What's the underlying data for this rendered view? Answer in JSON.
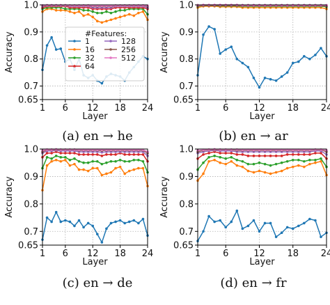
{
  "colors": {
    "1": "#1f77b4",
    "16": "#ff7f0e",
    "32": "#2ca02c",
    "64": "#d62728",
    "128": "#9467bd",
    "256": "#8c564b",
    "512": "#e377c2"
  },
  "legend": {
    "title": "#Features:",
    "placement": "inside-upper-center",
    "entries": [
      "1",
      "16",
      "32",
      "64",
      "128",
      "256",
      "512"
    ]
  },
  "captions": [
    "(a) en → he",
    "(b) en → ar",
    "(c) en → de",
    "(d) en → fr"
  ],
  "chart_data": [
    {
      "type": "line",
      "caption": "(a) en → he",
      "xlabel": "Layer",
      "ylabel": "Accuracy",
      "xlim": [
        1,
        24
      ],
      "ylim": [
        0.65,
        1.0
      ],
      "xticks": [
        1,
        6,
        12,
        18,
        24
      ],
      "yticks": [
        0.65,
        0.7,
        0.8,
        0.9,
        1.0
      ],
      "ytick_labels": [
        "0.65",
        "0.7",
        "0.8",
        "0.9",
        "1.0"
      ],
      "grid": true,
      "x": [
        1,
        2,
        3,
        4,
        5,
        6,
        7,
        8,
        9,
        10,
        11,
        12,
        13,
        14,
        15,
        16,
        17,
        18,
        19,
        20,
        21,
        22,
        23,
        24
      ],
      "series": [
        {
          "name": "1",
          "values": [
            0.76,
            0.85,
            0.88,
            0.835,
            0.838,
            0.79,
            0.8,
            0.76,
            0.8,
            0.74,
            0.73,
            0.74,
            0.72,
            0.71,
            0.735,
            0.745,
            0.74,
            0.735,
            0.72,
            0.75,
            0.77,
            0.79,
            0.81,
            0.8
          ]
        },
        {
          "name": "16",
          "values": [
            0.975,
            0.985,
            0.985,
            0.98,
            0.98,
            0.98,
            0.975,
            0.97,
            0.975,
            0.96,
            0.965,
            0.955,
            0.94,
            0.935,
            0.94,
            0.945,
            0.95,
            0.955,
            0.96,
            0.965,
            0.96,
            0.97,
            0.975,
            0.945
          ]
        },
        {
          "name": "32",
          "values": [
            0.985,
            0.99,
            0.99,
            0.99,
            0.99,
            0.985,
            0.985,
            0.985,
            0.985,
            0.98,
            0.98,
            0.975,
            0.97,
            0.97,
            0.975,
            0.97,
            0.975,
            0.98,
            0.98,
            0.985,
            0.985,
            0.985,
            0.985,
            0.965
          ]
        },
        {
          "name": "64",
          "values": [
            0.99,
            0.995,
            0.995,
            0.995,
            0.995,
            0.995,
            0.99,
            0.99,
            0.99,
            0.99,
            0.99,
            0.985,
            0.985,
            0.985,
            0.985,
            0.985,
            0.99,
            0.99,
            0.99,
            0.99,
            0.99,
            0.99,
            0.99,
            0.985
          ]
        },
        {
          "name": "128",
          "values": [
            0.995,
            0.997,
            0.997,
            0.997,
            0.997,
            0.997,
            0.995,
            0.995,
            0.995,
            0.995,
            0.995,
            0.99,
            0.99,
            0.99,
            0.99,
            0.99,
            0.995,
            0.995,
            0.995,
            0.995,
            0.995,
            0.995,
            0.995,
            0.99
          ]
        },
        {
          "name": "256",
          "values": [
            0.997,
            0.998,
            0.998,
            0.998,
            0.998,
            0.998,
            0.997,
            0.997,
            0.997,
            0.997,
            0.997,
            0.995,
            0.995,
            0.995,
            0.995,
            0.995,
            0.997,
            0.997,
            0.997,
            0.997,
            0.997,
            0.997,
            0.997,
            0.995
          ]
        },
        {
          "name": "512",
          "values": [
            0.998,
            0.999,
            0.999,
            0.999,
            0.999,
            0.999,
            0.998,
            0.998,
            0.998,
            0.998,
            0.998,
            0.997,
            0.997,
            0.997,
            0.997,
            0.997,
            0.998,
            0.998,
            0.998,
            0.998,
            0.998,
            0.998,
            0.998,
            0.997
          ]
        }
      ]
    },
    {
      "type": "line",
      "caption": "(b) en → ar",
      "xlabel": "Layer",
      "ylabel": "Accuracy",
      "xlim": [
        1,
        24
      ],
      "ylim": [
        0.65,
        1.0
      ],
      "xticks": [
        1,
        6,
        12,
        18,
        24
      ],
      "yticks": [
        0.65,
        0.7,
        0.8,
        0.9,
        1.0
      ],
      "ytick_labels": [
        "0.65",
        "0.7",
        "0.8",
        "0.9",
        "1.0"
      ],
      "grid": true,
      "x": [
        1,
        2,
        3,
        4,
        5,
        6,
        7,
        8,
        9,
        10,
        11,
        12,
        13,
        14,
        15,
        16,
        17,
        18,
        19,
        20,
        21,
        22,
        23,
        24
      ],
      "series": [
        {
          "name": "1",
          "values": [
            0.74,
            0.89,
            0.92,
            0.91,
            0.82,
            0.835,
            0.845,
            0.8,
            0.785,
            0.77,
            0.73,
            0.695,
            0.73,
            0.725,
            0.72,
            0.735,
            0.75,
            0.785,
            0.79,
            0.81,
            0.8,
            0.815,
            0.84,
            0.81
          ]
        },
        {
          "name": "16",
          "values": [
            0.99,
            0.995,
            0.995,
            0.995,
            0.993,
            0.993,
            0.993,
            0.993,
            0.99,
            0.99,
            0.99,
            0.99,
            0.99,
            0.99,
            0.99,
            0.99,
            0.99,
            0.99,
            0.99,
            0.99,
            0.99,
            0.99,
            0.99,
            0.985
          ]
        },
        {
          "name": "32",
          "values": [
            0.995,
            0.997,
            0.997,
            0.997,
            0.996,
            0.996,
            0.996,
            0.996,
            0.995,
            0.995,
            0.995,
            0.995,
            0.995,
            0.995,
            0.995,
            0.995,
            0.995,
            0.995,
            0.995,
            0.995,
            0.995,
            0.995,
            0.995,
            0.993
          ]
        },
        {
          "name": "64",
          "values": [
            0.997,
            0.998,
            0.998,
            0.998,
            0.998,
            0.998,
            0.998,
            0.998,
            0.997,
            0.997,
            0.997,
            0.997,
            0.997,
            0.997,
            0.997,
            0.997,
            0.997,
            0.997,
            0.997,
            0.997,
            0.997,
            0.997,
            0.997,
            0.996
          ]
        },
        {
          "name": "128",
          "values": [
            0.998,
            0.999,
            0.999,
            0.999,
            0.999,
            0.999,
            0.999,
            0.999,
            0.998,
            0.998,
            0.998,
            0.998,
            0.998,
            0.998,
            0.998,
            0.998,
            0.998,
            0.998,
            0.998,
            0.998,
            0.998,
            0.998,
            0.998,
            0.997
          ]
        },
        {
          "name": "256",
          "values": [
            0.999,
            0.999,
            0.999,
            0.999,
            0.999,
            0.999,
            0.999,
            0.999,
            0.999,
            0.999,
            0.999,
            0.999,
            0.999,
            0.999,
            0.999,
            0.999,
            0.999,
            0.999,
            0.999,
            0.999,
            0.999,
            0.999,
            0.999,
            0.998
          ]
        },
        {
          "name": "512",
          "values": [
            0.999,
            1.0,
            1.0,
            1.0,
            1.0,
            1.0,
            1.0,
            1.0,
            0.999,
            0.999,
            0.999,
            0.999,
            0.999,
            0.999,
            0.999,
            0.999,
            0.999,
            0.999,
            0.999,
            0.999,
            0.999,
            0.999,
            0.999,
            0.999
          ]
        }
      ]
    },
    {
      "type": "line",
      "caption": "(c) en → de",
      "xlabel": "Layer",
      "ylabel": "Accuracy",
      "xlim": [
        1,
        24
      ],
      "ylim": [
        0.65,
        1.0
      ],
      "xticks": [
        1,
        6,
        12,
        18,
        24
      ],
      "yticks": [
        0.65,
        0.7,
        0.8,
        0.9,
        1.0
      ],
      "ytick_labels": [
        "0.65",
        "0.7",
        "0.8",
        "0.9",
        "1.0"
      ],
      "grid": true,
      "x": [
        1,
        2,
        3,
        4,
        5,
        6,
        7,
        8,
        9,
        10,
        11,
        12,
        13,
        14,
        15,
        16,
        17,
        18,
        19,
        20,
        21,
        22,
        23,
        24
      ],
      "series": [
        {
          "name": "1",
          "values": [
            0.67,
            0.75,
            0.735,
            0.77,
            0.735,
            0.74,
            0.735,
            0.72,
            0.74,
            0.715,
            0.73,
            0.72,
            0.69,
            0.66,
            0.71,
            0.73,
            0.735,
            0.74,
            0.73,
            0.735,
            0.74,
            0.73,
            0.745,
            0.685
          ]
        },
        {
          "name": "16",
          "values": [
            0.85,
            0.94,
            0.955,
            0.96,
            0.955,
            0.96,
            0.94,
            0.945,
            0.925,
            0.925,
            0.92,
            0.93,
            0.93,
            0.905,
            0.91,
            0.915,
            0.93,
            0.935,
            0.91,
            0.92,
            0.925,
            0.93,
            0.93,
            0.865
          ]
        },
        {
          "name": "32",
          "values": [
            0.93,
            0.97,
            0.965,
            0.975,
            0.97,
            0.97,
            0.96,
            0.965,
            0.955,
            0.95,
            0.95,
            0.955,
            0.955,
            0.945,
            0.95,
            0.955,
            0.955,
            0.96,
            0.955,
            0.955,
            0.96,
            0.96,
            0.955,
            0.915
          ]
        },
        {
          "name": "64",
          "values": [
            0.97,
            0.985,
            0.985,
            0.99,
            0.985,
            0.985,
            0.985,
            0.985,
            0.98,
            0.98,
            0.98,
            0.98,
            0.98,
            0.975,
            0.98,
            0.98,
            0.98,
            0.985,
            0.98,
            0.98,
            0.98,
            0.98,
            0.98,
            0.955
          ]
        },
        {
          "name": "128",
          "values": [
            0.985,
            0.993,
            0.993,
            0.995,
            0.993,
            0.993,
            0.993,
            0.993,
            0.99,
            0.99,
            0.99,
            0.99,
            0.99,
            0.988,
            0.99,
            0.99,
            0.99,
            0.99,
            0.99,
            0.99,
            0.99,
            0.99,
            0.99,
            0.975
          ]
        },
        {
          "name": "256",
          "values": [
            0.99,
            0.997,
            0.997,
            0.997,
            0.997,
            0.997,
            0.997,
            0.997,
            0.995,
            0.995,
            0.995,
            0.995,
            0.995,
            0.994,
            0.995,
            0.995,
            0.995,
            0.995,
            0.995,
            0.995,
            0.995,
            0.995,
            0.995,
            0.985
          ]
        },
        {
          "name": "512",
          "values": [
            0.995,
            0.998,
            0.998,
            0.999,
            0.998,
            0.998,
            0.998,
            0.998,
            0.997,
            0.997,
            0.997,
            0.997,
            0.997,
            0.997,
            0.997,
            0.997,
            0.997,
            0.997,
            0.997,
            0.997,
            0.997,
            0.997,
            0.997,
            0.99
          ]
        }
      ]
    },
    {
      "type": "line",
      "caption": "(d) en → fr",
      "xlabel": "Layer",
      "ylabel": "Accuracy",
      "xlim": [
        1,
        24
      ],
      "ylim": [
        0.65,
        1.0
      ],
      "xticks": [
        1,
        6,
        12,
        18,
        24
      ],
      "yticks": [
        0.65,
        0.7,
        0.8,
        0.9,
        1.0
      ],
      "ytick_labels": [
        "0.65",
        "0.7",
        "0.8",
        "0.9",
        "1.0"
      ],
      "grid": true,
      "x": [
        1,
        2,
        3,
        4,
        5,
        6,
        7,
        8,
        9,
        10,
        11,
        12,
        13,
        14,
        15,
        16,
        17,
        18,
        19,
        20,
        21,
        22,
        23,
        24
      ],
      "series": [
        {
          "name": "1",
          "values": [
            0.665,
            0.7,
            0.755,
            0.735,
            0.74,
            0.715,
            0.735,
            0.775,
            0.71,
            0.72,
            0.74,
            0.7,
            0.73,
            0.73,
            0.68,
            0.695,
            0.715,
            0.71,
            0.72,
            0.73,
            0.745,
            0.74,
            0.68,
            0.695
          ]
        },
        {
          "name": "16",
          "values": [
            0.885,
            0.91,
            0.955,
            0.96,
            0.95,
            0.945,
            0.955,
            0.94,
            0.935,
            0.92,
            0.915,
            0.92,
            0.915,
            0.91,
            0.915,
            0.92,
            0.93,
            0.935,
            0.94,
            0.935,
            0.945,
            0.95,
            0.955,
            0.905
          ]
        },
        {
          "name": "32",
          "values": [
            0.925,
            0.95,
            0.97,
            0.975,
            0.97,
            0.965,
            0.97,
            0.96,
            0.955,
            0.945,
            0.945,
            0.95,
            0.945,
            0.94,
            0.945,
            0.95,
            0.955,
            0.96,
            0.96,
            0.955,
            0.96,
            0.96,
            0.965,
            0.935
          ]
        },
        {
          "name": "64",
          "values": [
            0.965,
            0.98,
            0.985,
            0.99,
            0.985,
            0.985,
            0.985,
            0.98,
            0.98,
            0.975,
            0.975,
            0.975,
            0.975,
            0.975,
            0.975,
            0.975,
            0.98,
            0.98,
            0.98,
            0.98,
            0.98,
            0.985,
            0.985,
            0.965
          ]
        },
        {
          "name": "128",
          "values": [
            0.985,
            0.99,
            0.993,
            0.995,
            0.993,
            0.993,
            0.993,
            0.99,
            0.99,
            0.99,
            0.99,
            0.99,
            0.99,
            0.99,
            0.99,
            0.99,
            0.99,
            0.99,
            0.99,
            0.99,
            0.99,
            0.993,
            0.993,
            0.98
          ]
        },
        {
          "name": "256",
          "values": [
            0.99,
            0.995,
            0.997,
            0.997,
            0.997,
            0.997,
            0.997,
            0.995,
            0.995,
            0.995,
            0.995,
            0.995,
            0.995,
            0.995,
            0.995,
            0.995,
            0.995,
            0.995,
            0.995,
            0.995,
            0.995,
            0.997,
            0.997,
            0.99
          ]
        },
        {
          "name": "512",
          "values": [
            0.995,
            0.997,
            0.998,
            0.999,
            0.998,
            0.998,
            0.998,
            0.998,
            0.997,
            0.997,
            0.997,
            0.997,
            0.997,
            0.997,
            0.997,
            0.997,
            0.997,
            0.997,
            0.997,
            0.997,
            0.997,
            0.998,
            0.998,
            0.995
          ]
        }
      ]
    }
  ]
}
